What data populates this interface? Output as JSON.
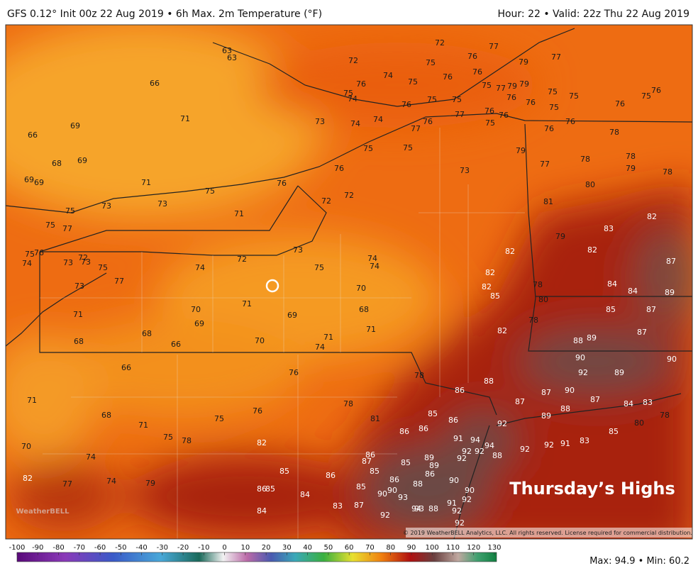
{
  "header": {
    "title": "GFS 0.12° Init 00z 22 Aug 2019 • 6h Max. 2m Temperature (°F)",
    "valid": "Hour: 22 • Valid: 22z Thu 22 Aug 2019"
  },
  "map": {
    "temperature_labels": [
      63,
      63,
      72,
      72,
      76,
      77,
      79,
      77,
      75,
      74,
      76,
      76,
      75,
      76,
      75,
      74,
      66,
      75,
      75,
      75,
      77,
      79,
      79,
      75,
      75,
      75,
      76,
      76,
      76,
      76,
      76,
      77,
      76,
      76,
      75,
      69,
      71,
      73,
      74,
      74,
      77,
      76,
      75,
      76,
      76,
      78,
      66,
      68,
      69,
      75,
      75,
      79,
      77,
      78,
      78,
      79,
      78,
      69,
      69,
      71,
      76,
      76,
      73,
      80,
      75,
      72,
      72,
      73,
      73,
      75,
      71,
      81,
      82,
      75,
      77,
      83,
      79,
      75,
      76,
      72,
      73,
      73,
      72,
      74,
      74,
      82,
      82,
      74,
      73,
      75,
      74,
      75,
      87,
      77,
      73,
      70,
      82,
      82,
      85,
      78,
      84,
      84,
      89,
      71,
      80,
      70,
      68,
      85,
      87,
      71,
      69,
      78,
      69,
      71,
      82,
      87,
      88,
      89,
      68,
      71,
      70,
      68,
      66,
      74,
      90,
      90,
      66,
      76,
      92,
      89,
      78,
      88,
      86,
      87,
      90,
      87,
      71,
      87,
      84,
      83,
      78,
      76,
      85,
      88,
      89,
      86,
      68,
      75,
      81,
      78,
      71,
      92,
      80,
      85,
      75,
      78,
      86,
      86,
      91,
      94,
      94,
      83,
      92,
      91,
      82,
      70,
      92,
      92,
      88,
      92,
      74,
      86,
      87,
      89,
      85,
      92,
      89,
      85,
      86,
      85,
      86,
      90,
      82,
      74,
      79,
      77,
      86,
      88,
      85,
      86,
      85,
      84,
      90,
      90,
      93,
      90,
      88,
      92,
      87,
      83,
      91,
      94,
      93,
      92,
      84,
      92,
      92
    ],
    "overlay_title": "Thursday’s Highs",
    "copyright": "© 2019 WeatherBELL Analytics, LLC. All rights reserved. License required for commercial distribution.",
    "watermark": "WeatherBELL"
  },
  "colorbar": {
    "ticks": [
      -100,
      -90,
      -80,
      -70,
      -60,
      -50,
      -40,
      -30,
      -20,
      -10,
      0,
      10,
      20,
      30,
      40,
      50,
      60,
      70,
      80,
      90,
      100,
      110,
      120,
      130
    ]
  },
  "footer": {
    "stats": "Max: 94.9 • Min: 60.2"
  }
}
